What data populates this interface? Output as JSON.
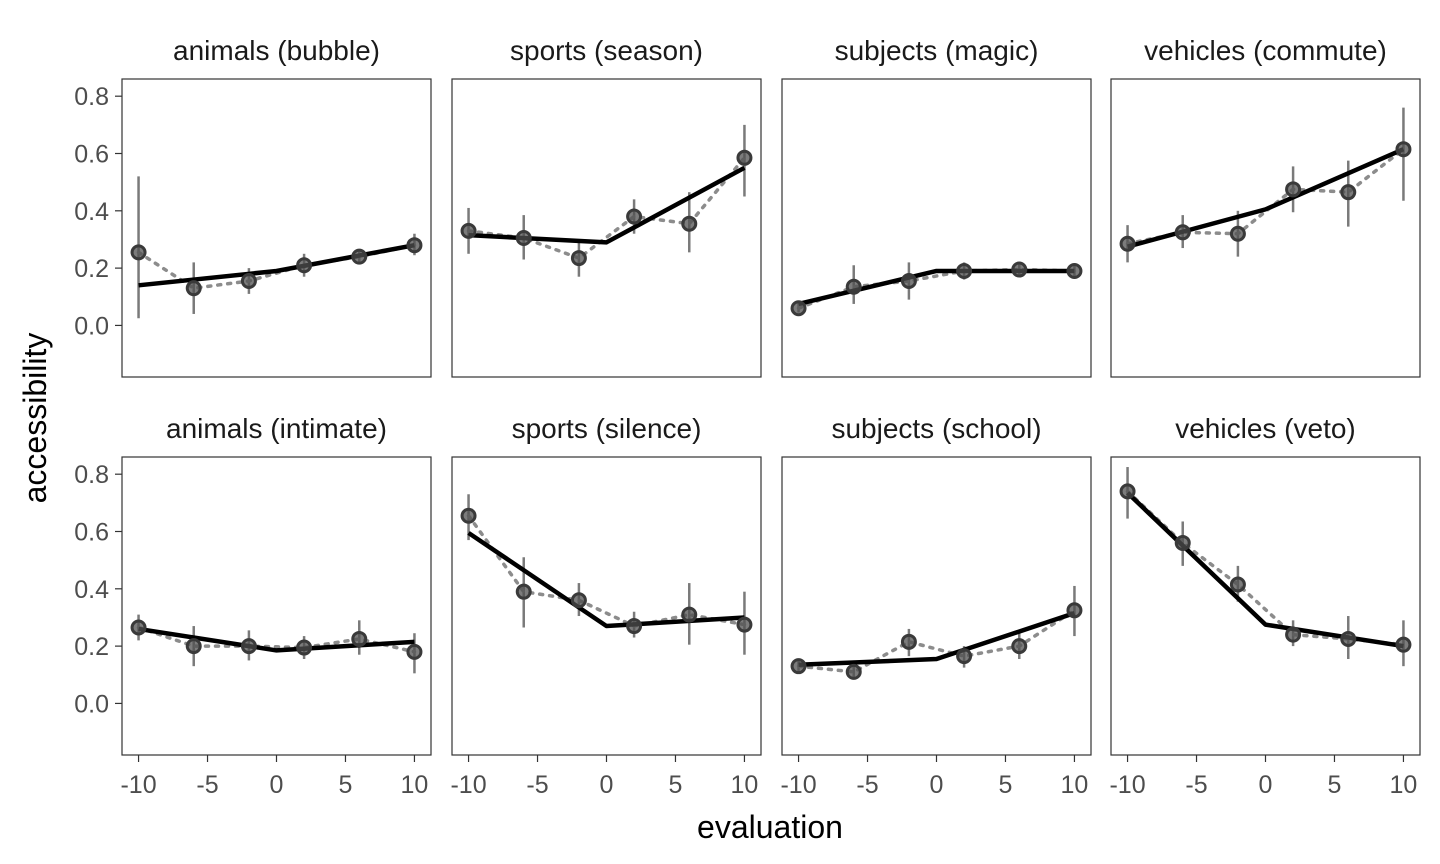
{
  "chart_data": {
    "type": "line",
    "xlabel": "evaluation",
    "ylabel": "accessibility",
    "xlim": [
      -11.2,
      11.2
    ],
    "ylim": [
      -0.18,
      0.86
    ],
    "x_ticks": [
      -10,
      -5,
      0,
      5,
      10
    ],
    "x_tick_labels": [
      "-10",
      "-5",
      "0",
      "5",
      "10"
    ],
    "y_ticks": [
      0.0,
      0.2,
      0.4,
      0.6,
      0.8
    ],
    "y_tick_labels": [
      "0.0",
      "0.2",
      "0.4",
      "0.6",
      "0.8"
    ],
    "layout": "facets 2 rows x 4 columns",
    "panels": [
      {
        "title": "animals (bubble)",
        "observed": {
          "x": [
            -10,
            -6,
            -2,
            2,
            6,
            10
          ],
          "y": [
            0.255,
            0.13,
            0.155,
            0.21,
            0.24,
            0.28
          ],
          "lower": [
            0.025,
            0.04,
            0.11,
            0.17,
            0.215,
            0.245
          ],
          "upper": [
            0.52,
            0.22,
            0.2,
            0.25,
            0.265,
            0.32
          ]
        },
        "fitted": {
          "x": [
            -10,
            0,
            10
          ],
          "y": [
            0.14,
            0.19,
            0.28
          ]
        }
      },
      {
        "title": "sports (season)",
        "observed": {
          "x": [
            -10,
            -6,
            -2,
            2,
            6,
            10
          ],
          "y": [
            0.33,
            0.305,
            0.235,
            0.38,
            0.355,
            0.585
          ],
          "lower": [
            0.25,
            0.23,
            0.17,
            0.32,
            0.255,
            0.45
          ],
          "upper": [
            0.41,
            0.385,
            0.3,
            0.44,
            0.465,
            0.7
          ]
        },
        "fitted": {
          "x": [
            -10,
            0,
            10
          ],
          "y": [
            0.315,
            0.29,
            0.55
          ]
        }
      },
      {
        "title": "subjects (magic)",
        "observed": {
          "x": [
            -10,
            -6,
            -2,
            2,
            6,
            10
          ],
          "y": [
            0.06,
            0.135,
            0.155,
            0.19,
            0.195,
            0.19
          ],
          "lower": [
            0.045,
            0.075,
            0.09,
            0.16,
            0.17,
            0.165
          ],
          "upper": [
            0.08,
            0.21,
            0.22,
            0.22,
            0.22,
            0.21
          ]
        },
        "fitted": {
          "x": [
            -10,
            0,
            10
          ],
          "y": [
            0.075,
            0.19,
            0.19
          ]
        }
      },
      {
        "title": "vehicles (commute)",
        "observed": {
          "x": [
            -10,
            -6,
            -2,
            2,
            6,
            10
          ],
          "y": [
            0.285,
            0.325,
            0.32,
            0.475,
            0.465,
            0.615
          ],
          "lower": [
            0.22,
            0.27,
            0.24,
            0.395,
            0.345,
            0.435
          ],
          "upper": [
            0.35,
            0.385,
            0.4,
            0.555,
            0.575,
            0.76
          ]
        },
        "fitted": {
          "x": [
            -10,
            0,
            10
          ],
          "y": [
            0.275,
            0.405,
            0.615
          ]
        }
      },
      {
        "title": "animals (intimate)",
        "observed": {
          "x": [
            -10,
            -6,
            -2,
            2,
            6,
            10
          ],
          "y": [
            0.265,
            0.2,
            0.2,
            0.195,
            0.225,
            0.18
          ],
          "lower": [
            0.22,
            0.13,
            0.15,
            0.155,
            0.17,
            0.105
          ],
          "upper": [
            0.31,
            0.27,
            0.255,
            0.235,
            0.29,
            0.245
          ]
        },
        "fitted": {
          "x": [
            -10,
            0,
            10
          ],
          "y": [
            0.26,
            0.185,
            0.215
          ]
        }
      },
      {
        "title": "sports (silence)",
        "observed": {
          "x": [
            -10,
            -6,
            -2,
            2,
            6,
            10
          ],
          "y": [
            0.655,
            0.39,
            0.36,
            0.27,
            0.31,
            0.275
          ],
          "lower": [
            0.57,
            0.265,
            0.305,
            0.23,
            0.205,
            0.17
          ],
          "upper": [
            0.73,
            0.51,
            0.42,
            0.32,
            0.42,
            0.39
          ]
        },
        "fitted": {
          "x": [
            -10,
            0,
            10
          ],
          "y": [
            0.595,
            0.27,
            0.3
          ]
        }
      },
      {
        "title": "subjects (school)",
        "observed": {
          "x": [
            -10,
            -6,
            -2,
            2,
            6,
            10
          ],
          "y": [
            0.13,
            0.11,
            0.215,
            0.165,
            0.2,
            0.325
          ],
          "lower": [
            0.11,
            0.085,
            0.165,
            0.125,
            0.155,
            0.235
          ],
          "upper": [
            0.15,
            0.13,
            0.26,
            0.2,
            0.245,
            0.41
          ]
        },
        "fitted": {
          "x": [
            -10,
            0,
            10
          ],
          "y": [
            0.135,
            0.155,
            0.315
          ]
        }
      },
      {
        "title": "vehicles (veto)",
        "observed": {
          "x": [
            -10,
            -6,
            -2,
            2,
            6,
            10
          ],
          "y": [
            0.74,
            0.56,
            0.415,
            0.24,
            0.225,
            0.205
          ],
          "lower": [
            0.645,
            0.48,
            0.355,
            0.2,
            0.155,
            0.13
          ],
          "upper": [
            0.825,
            0.635,
            0.48,
            0.29,
            0.305,
            0.29
          ]
        },
        "fitted": {
          "x": [
            -10,
            0,
            10
          ],
          "y": [
            0.735,
            0.275,
            0.2
          ]
        }
      }
    ]
  }
}
